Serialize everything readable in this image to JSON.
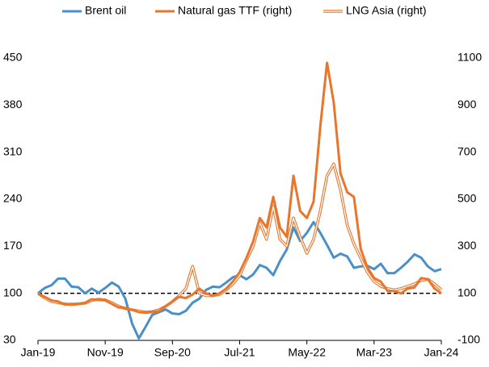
{
  "chart_data": {
    "type": "line",
    "categories": [
      "Jan-19",
      null,
      null,
      null,
      null,
      null,
      null,
      null,
      null,
      null,
      "Nov-19",
      null,
      null,
      null,
      null,
      null,
      null,
      null,
      null,
      null,
      "Sep-20",
      null,
      null,
      null,
      null,
      null,
      null,
      null,
      null,
      null,
      "Jul-21",
      null,
      null,
      null,
      null,
      null,
      null,
      null,
      null,
      null,
      "May-22",
      null,
      null,
      null,
      null,
      null,
      null,
      null,
      null,
      null,
      "Mar-23",
      null,
      null,
      null,
      null,
      null,
      null,
      null,
      null,
      null,
      "Jan-24"
    ],
    "series": [
      {
        "name": "Brent oil",
        "color": "#4a90c8",
        "axis": "y",
        "values": [
          100,
          108,
          112,
          122,
          122,
          110,
          109,
          100,
          107,
          101,
          108,
          116,
          110,
          92,
          55,
          33,
          50,
          68,
          72,
          76,
          70,
          69,
          74,
          86,
          92,
          105,
          110,
          109,
          116,
          124,
          127,
          121,
          128,
          142,
          138,
          127,
          148,
          165,
          198,
          178,
          190,
          206,
          190,
          172,
          153,
          159,
          155,
          138,
          140,
          141,
          136,
          144,
          130,
          130,
          138,
          147,
          158,
          153,
          140,
          133,
          136
        ]
      },
      {
        "name": "Natural gas TTF (right)",
        "color": "#e8762d",
        "axis": "y2",
        "values": [
          100,
          85,
          70,
          65,
          52,
          55,
          55,
          60,
          75,
          72,
          70,
          55,
          40,
          38,
          30,
          20,
          18,
          20,
          25,
          45,
          65,
          85,
          80,
          95,
          120,
          100,
          90,
          100,
          120,
          150,
          190,
          250,
          320,
          420,
          380,
          510,
          380,
          340,
          600,
          450,
          420,
          490,
          810,
          1080,
          910,
          610,
          530,
          510,
          290,
          210,
          165,
          150,
          110,
          110,
          100,
          120,
          125,
          165,
          160,
          120,
          100
        ]
      },
      {
        "name": "LNG Asia (right)",
        "color": "#e8762d",
        "axis": "y2",
        "style": "double",
        "values": [
          100,
          80,
          65,
          60,
          55,
          52,
          55,
          58,
          70,
          75,
          72,
          60,
          45,
          35,
          30,
          25,
          20,
          22,
          30,
          45,
          65,
          90,
          120,
          215,
          100,
          90,
          90,
          95,
          115,
          140,
          175,
          240,
          300,
          400,
          330,
          470,
          330,
          300,
          420,
          340,
          270,
          330,
          450,
          600,
          650,
          540,
          390,
          310,
          250,
          190,
          150,
          130,
          120,
          115,
          120,
          130,
          140,
          155,
          160,
          140,
          115
        ]
      }
    ],
    "ylim": [
      30,
      450
    ],
    "yticks": [
      30,
      100,
      170,
      240,
      310,
      380,
      450
    ],
    "y2lim": [
      -100,
      1100
    ],
    "y2ticks": [
      -100,
      100,
      300,
      500,
      700,
      900,
      1100
    ],
    "reference_line": 100,
    "legend": "top"
  }
}
